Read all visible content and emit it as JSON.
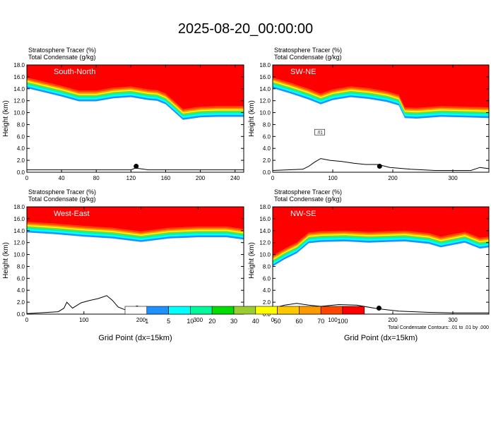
{
  "page_title": "2025-08-20_00:00:00",
  "colors": {
    "levels": [
      "#ffffff",
      "#1e90ff",
      "#00ffff",
      "#00fa9a",
      "#00dd00",
      "#9acd32",
      "#ffff00",
      "#ffc800",
      "#ff9900",
      "#ff4500",
      "#ff0000"
    ],
    "terrain": "#000000"
  },
  "chart_data": [
    {
      "type": "heatmap",
      "title": "South-North",
      "label1": "Stratosphere Tracer   (%)",
      "label2": "Total Condensate   (g/kg)",
      "ylabel": "Height (km)",
      "xlabel": "",
      "xlim": [
        0,
        250
      ],
      "ylim": [
        0,
        18
      ],
      "xticks": [
        0,
        40,
        80,
        120,
        160,
        200,
        240
      ],
      "yticks": [
        0,
        2,
        4,
        6,
        8,
        10,
        12,
        14,
        16,
        18
      ],
      "tropopause": [
        [
          0,
          15.3
        ],
        [
          20,
          14.6
        ],
        [
          40,
          13.9
        ],
        [
          60,
          13.1
        ],
        [
          80,
          13.1
        ],
        [
          100,
          13.6
        ],
        [
          120,
          13.8
        ],
        [
          140,
          13.3
        ],
        [
          150,
          13.2
        ],
        [
          160,
          12.6
        ],
        [
          170,
          11.3
        ],
        [
          180,
          10.0
        ],
        [
          200,
          10.4
        ],
        [
          220,
          10.5
        ],
        [
          240,
          10.5
        ],
        [
          250,
          10.5
        ]
      ],
      "terrain": [
        [
          0,
          0.4
        ],
        [
          120,
          0.4
        ],
        [
          125,
          0.7
        ],
        [
          130,
          0.6
        ],
        [
          140,
          0.4
        ],
        [
          170,
          0.4
        ],
        [
          250,
          0.4
        ]
      ],
      "marker": [
        126,
        1.0
      ]
    },
    {
      "type": "heatmap",
      "title": "SW-NE",
      "label1": "Stratosphere Tracer   (%)",
      "label2": "Total Condensate   (g/kg)",
      "ylabel": "Height (km)",
      "xlabel": "",
      "xlim": [
        0,
        360
      ],
      "ylim": [
        0,
        18
      ],
      "xticks": [
        0,
        100,
        200,
        300
      ],
      "yticks": [
        0,
        2,
        4,
        6,
        8,
        10,
        12,
        14,
        16,
        18
      ],
      "tropopause": [
        [
          0,
          15.3
        ],
        [
          30,
          14.4
        ],
        [
          60,
          13.4
        ],
        [
          80,
          12.6
        ],
        [
          100,
          13.3
        ],
        [
          130,
          13.8
        ],
        [
          160,
          13.5
        ],
        [
          190,
          13.0
        ],
        [
          210,
          12.4
        ],
        [
          220,
          10.3
        ],
        [
          240,
          10.2
        ],
        [
          280,
          10.5
        ],
        [
          320,
          10.4
        ],
        [
          360,
          10.3
        ]
      ],
      "terrain": [
        [
          0,
          0.3
        ],
        [
          50,
          0.5
        ],
        [
          60,
          1.0
        ],
        [
          70,
          1.7
        ],
        [
          80,
          2.3
        ],
        [
          95,
          2.0
        ],
        [
          115,
          1.8
        ],
        [
          135,
          1.5
        ],
        [
          155,
          1.3
        ],
        [
          175,
          1.3
        ],
        [
          195,
          0.8
        ],
        [
          230,
          0.5
        ],
        [
          270,
          0.3
        ],
        [
          330,
          0.3
        ],
        [
          345,
          0.8
        ],
        [
          360,
          0.6
        ]
      ],
      "marker": [
        178,
        1.0
      ],
      "annotation": ".01"
    },
    {
      "type": "heatmap",
      "title": "West-East",
      "label1": "Stratosphere Tracer   (%)",
      "label2": "Total Condensate   (g/kg)",
      "ylabel": "Height (km)",
      "xlabel": "Grid Point (dx=15km)",
      "xlim": [
        0,
        380
      ],
      "ylim": [
        0,
        18
      ],
      "xticks": [
        0,
        100,
        200,
        300
      ],
      "yticks": [
        0,
        2,
        4,
        6,
        8,
        10,
        12,
        14,
        16,
        18
      ],
      "tropopause": [
        [
          0,
          14.9
        ],
        [
          50,
          14.6
        ],
        [
          100,
          14.2
        ],
        [
          150,
          13.9
        ],
        [
          200,
          13.3
        ],
        [
          250,
          13.9
        ],
        [
          300,
          14.1
        ],
        [
          350,
          14.1
        ],
        [
          380,
          13.7
        ]
      ],
      "terrain": [
        [
          0,
          0.1
        ],
        [
          55,
          0.4
        ],
        [
          65,
          1.0
        ],
        [
          70,
          2.0
        ],
        [
          80,
          1.0
        ],
        [
          95,
          1.9
        ],
        [
          110,
          2.3
        ],
        [
          125,
          2.6
        ],
        [
          140,
          3.1
        ],
        [
          150,
          2.3
        ],
        [
          160,
          1.2
        ],
        [
          170,
          0.8
        ],
        [
          185,
          0.5
        ],
        [
          200,
          0.9
        ],
        [
          220,
          0.5
        ],
        [
          260,
          0.3
        ],
        [
          300,
          0.2
        ],
        [
          380,
          0.1
        ]
      ],
      "marker": [
        193,
        1.0
      ]
    },
    {
      "type": "heatmap",
      "title": "NW-SE",
      "label1": "Stratosphere Tracer   (%)",
      "label2": "Total Condensate   (g/kg)",
      "ylabel": "Height (km)",
      "xlabel": "Grid Point (dx=15km)",
      "xlim": [
        0,
        360
      ],
      "ylim": [
        0,
        18
      ],
      "xticks": [
        0,
        100,
        200,
        300
      ],
      "yticks": [
        0,
        2,
        4,
        6,
        8,
        10,
        12,
        14,
        16,
        18
      ],
      "tropopause": [
        [
          0,
          9.2
        ],
        [
          20,
          10.4
        ],
        [
          40,
          11.4
        ],
        [
          60,
          13.1
        ],
        [
          80,
          13.3
        ],
        [
          120,
          13.4
        ],
        [
          160,
          13.2
        ],
        [
          190,
          13.3
        ],
        [
          220,
          13.4
        ],
        [
          260,
          13.0
        ],
        [
          280,
          12.4
        ],
        [
          300,
          12.8
        ],
        [
          320,
          13.2
        ],
        [
          345,
          12.2
        ],
        [
          360,
          12.4
        ]
      ],
      "terrain": [
        [
          0,
          1.0
        ],
        [
          20,
          1.5
        ],
        [
          40,
          1.8
        ],
        [
          60,
          1.5
        ],
        [
          80,
          1.3
        ],
        [
          110,
          1.6
        ],
        [
          140,
          1.5
        ],
        [
          175,
          0.9
        ],
        [
          210,
          0.5
        ],
        [
          260,
          0.3
        ],
        [
          300,
          0.2
        ],
        [
          360,
          0.2
        ]
      ],
      "marker": [
        177,
        1.0
      ],
      "footnote": "Total Condensate Contours: .01 to .01 by .000"
    }
  ],
  "colorbar": {
    "labels": [
      "1",
      "5",
      "10",
      "20",
      "30",
      "40",
      "50",
      "60",
      "70",
      "100"
    ]
  }
}
